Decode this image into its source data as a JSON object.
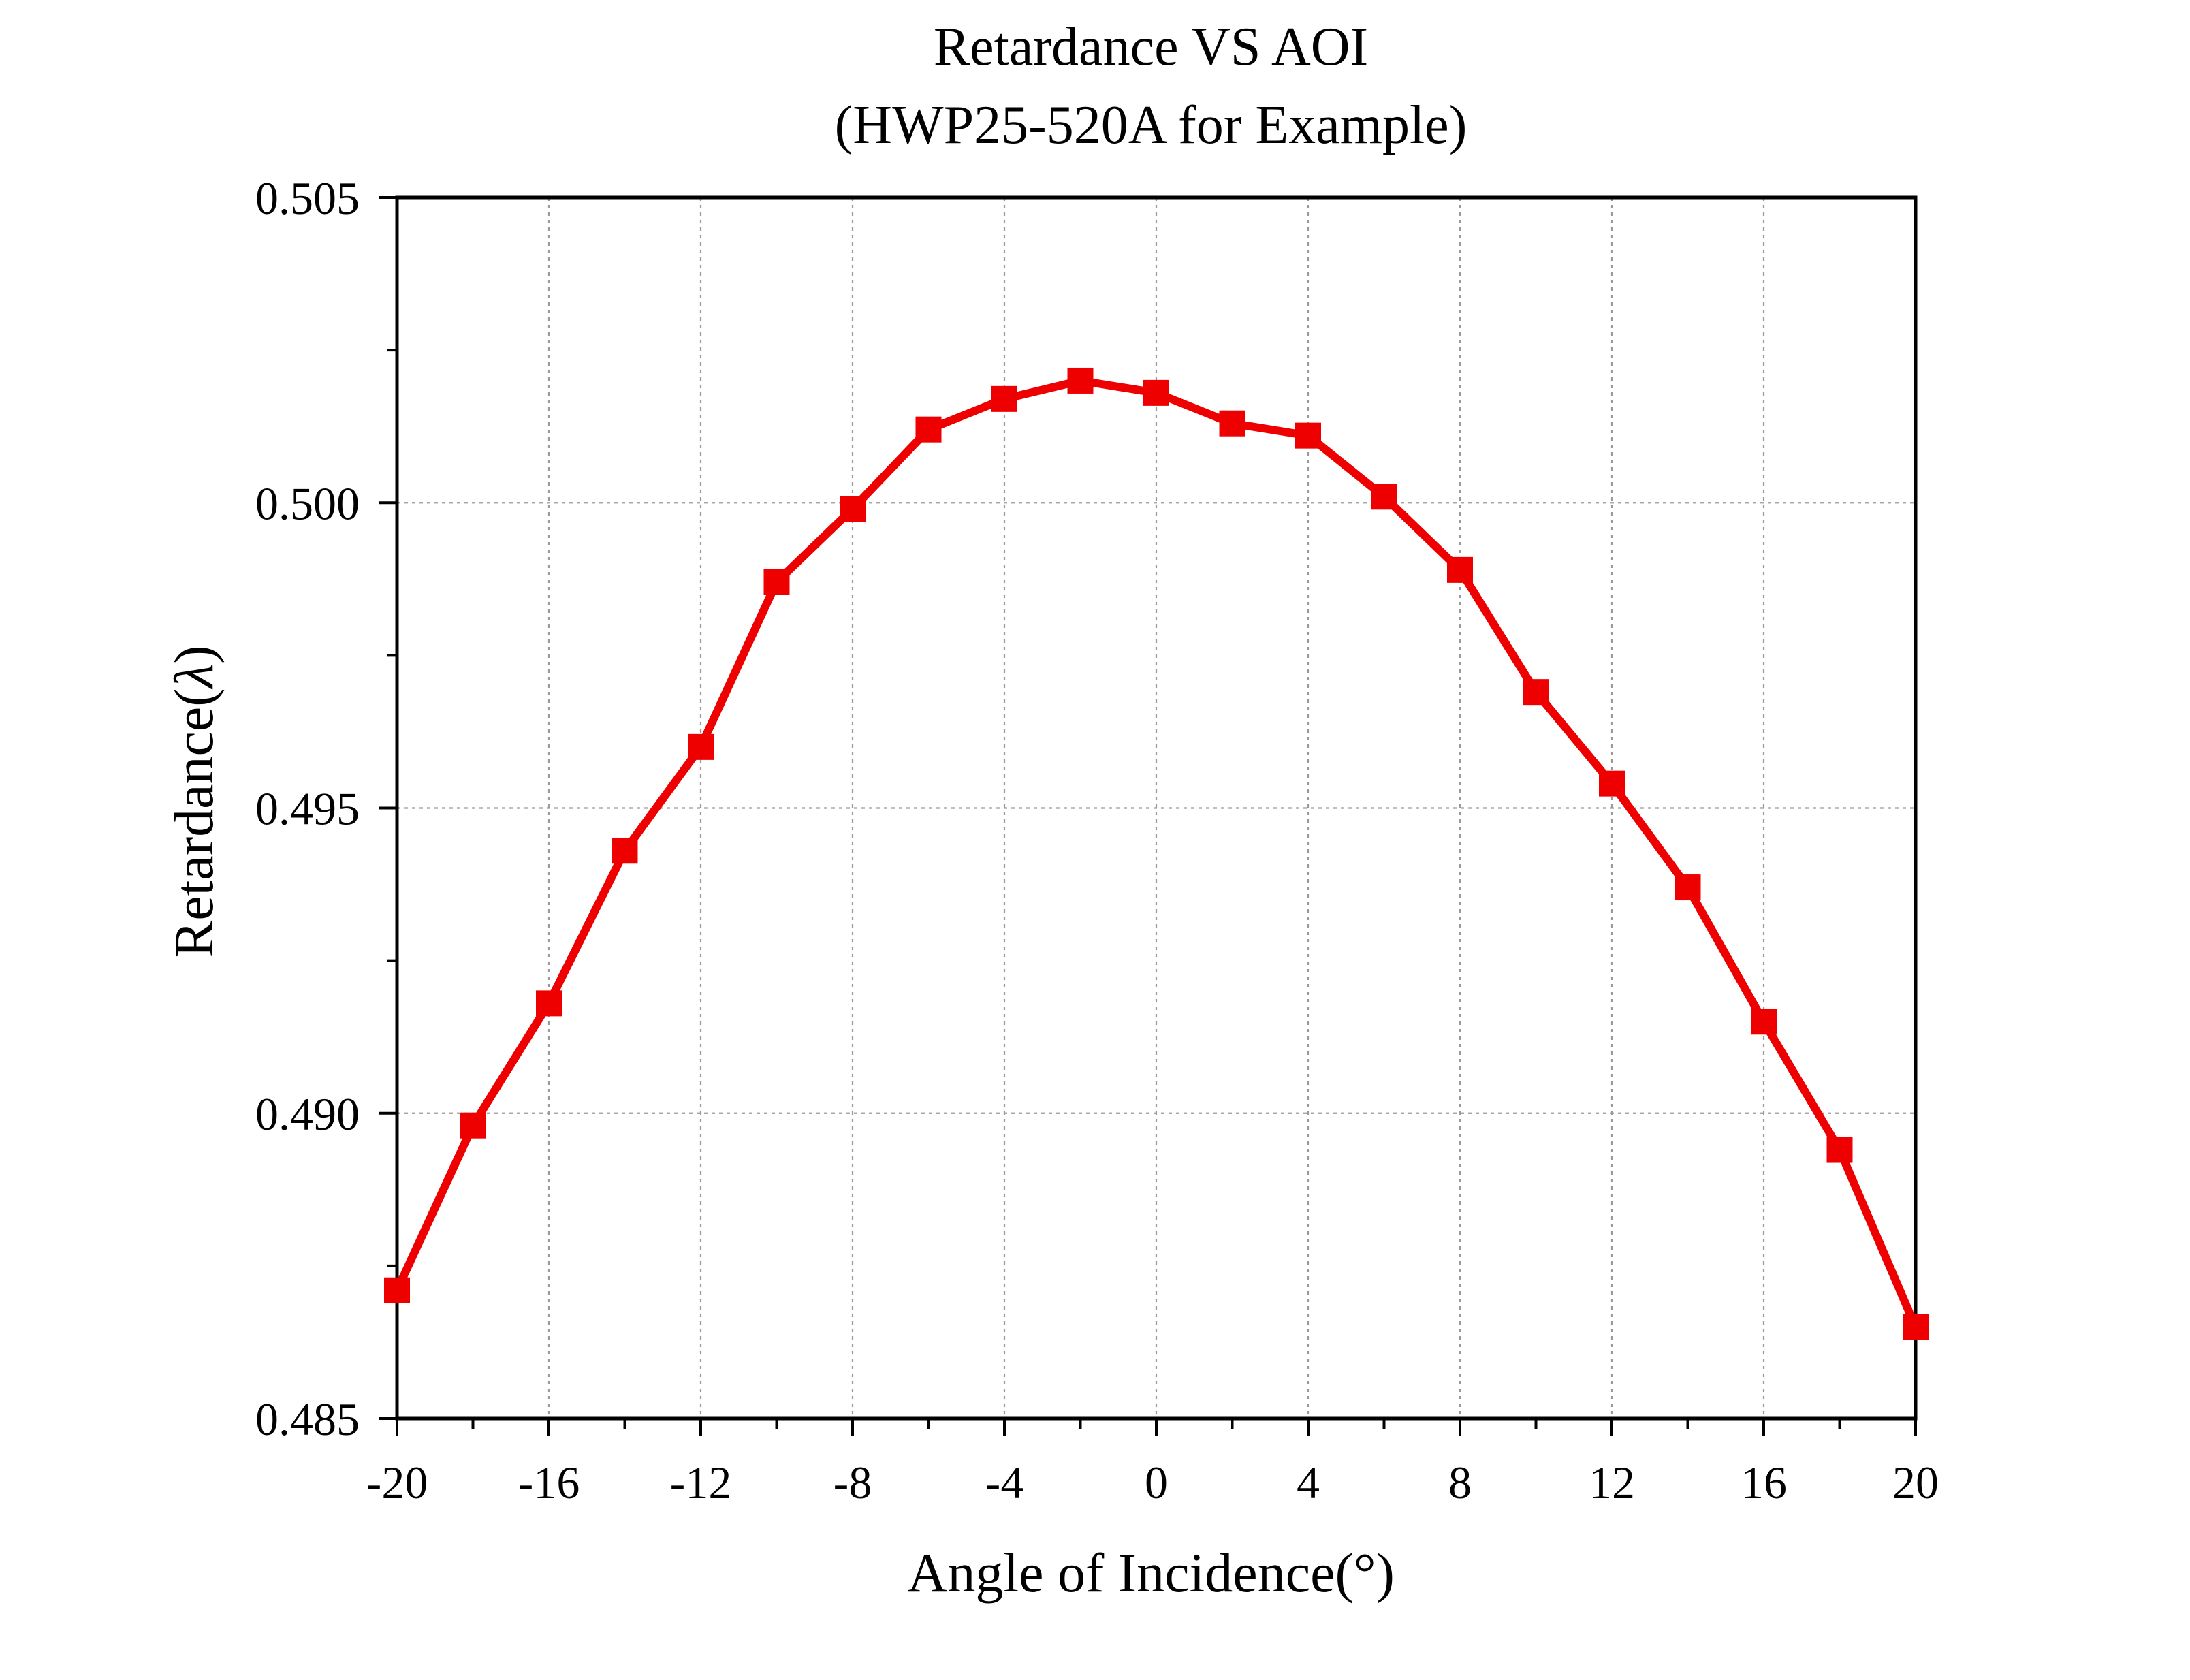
{
  "chart_data": {
    "type": "line",
    "title": "Retardance VS AOI",
    "subtitle": "(HWP25-520A for Example)",
    "xlabel": "Angle of Incidence(°)",
    "ylabel_prefix": "Retardance(",
    "ylabel_symbol": "λ",
    "ylabel_suffix": ")",
    "xlim": [
      -20,
      20
    ],
    "ylim": [
      0.485,
      0.505
    ],
    "xticks": [
      -20,
      -16,
      -12,
      -8,
      -4,
      0,
      4,
      8,
      12,
      16,
      20
    ],
    "xtick_labels": [
      "-20",
      "-16",
      "-12",
      "-8",
      "-4",
      "0",
      "4",
      "8",
      "12",
      "16",
      "20"
    ],
    "yticks": [
      0.485,
      0.49,
      0.495,
      0.5,
      0.505
    ],
    "ytick_labels": [
      "0.485",
      "0.490",
      "0.495",
      "0.500",
      "0.505"
    ],
    "grid": true,
    "series": [
      {
        "color": "#ee0000",
        "marker": "square",
        "x": [
          -20,
          -18,
          -16,
          -14,
          -12,
          -10,
          -8,
          -6,
          -4,
          -2,
          0,
          2,
          4,
          6,
          8,
          10,
          12,
          14,
          16,
          18,
          20
        ],
        "y": [
          0.4871,
          0.4898,
          0.4918,
          0.4943,
          0.496,
          0.4987,
          0.4999,
          0.5012,
          0.5017,
          0.502,
          0.5018,
          0.5013,
          0.5011,
          0.5001,
          0.4989,
          0.4969,
          0.4954,
          0.4937,
          0.4915,
          0.4894,
          0.4865
        ]
      }
    ]
  }
}
